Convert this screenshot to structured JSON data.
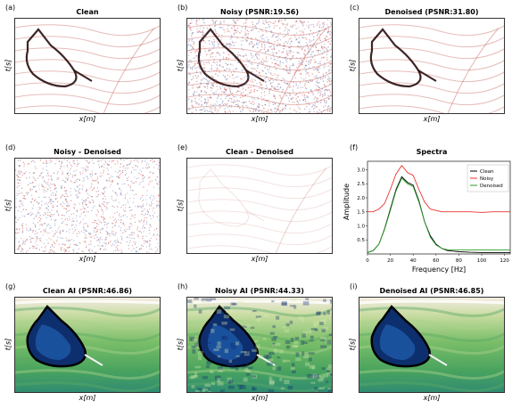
{
  "panels": [
    {
      "letter": "(a)",
      "title": "Clean",
      "xlabel": "x[m]",
      "ylabel": "t[s]",
      "style": "seismic"
    },
    {
      "letter": "(b)",
      "title": "Noisy (PSNR:19.56)",
      "xlabel": "x[m]",
      "ylabel": "t[s]",
      "style": "seismic-noisy"
    },
    {
      "letter": "(c)",
      "title": "Denoised (PSNR:31.80)",
      "xlabel": "x[m]",
      "ylabel": "t[s]",
      "style": "seismic"
    },
    {
      "letter": "(d)",
      "title": "Noisy - Denoised",
      "xlabel": "x[m]",
      "ylabel": "t[s]",
      "style": "noise"
    },
    {
      "letter": "(e)",
      "title": "Clean - Denoised",
      "xlabel": "x[m]",
      "ylabel": "t[s]",
      "style": "residual"
    },
    {
      "letter": "(f)",
      "title": "Spectra",
      "xlabel": "Frequency",
      "ylabel": "Amplitude",
      "style": "chart"
    },
    {
      "letter": "(g)",
      "title": "Clean AI (PSNR:46.86)",
      "xlabel": "x[m]",
      "ylabel": "t[s]",
      "style": "ai"
    },
    {
      "letter": "(h)",
      "title": "Noisy AI (PSNR:44.33)",
      "xlabel": "x[m]",
      "ylabel": "t[s]",
      "style": "ai-noisy"
    },
    {
      "letter": "(i)",
      "title": "Denoised AI (PSNR:46.85)",
      "xlabel": "x[m]",
      "ylabel": "t[s]",
      "style": "ai"
    }
  ],
  "chart_data": {
    "type": "line",
    "title": "Spectra",
    "xlabel": "Frequency [Hz]",
    "ylabel": "Amplitude",
    "xlim": [
      0,
      125
    ],
    "ylim": [
      0,
      3.3
    ],
    "xticks": [
      0,
      20,
      40,
      60,
      80,
      100,
      120
    ],
    "yticks": [
      0.5,
      1.0,
      1.5,
      2.0,
      2.5,
      3.0
    ],
    "grid": false,
    "legend_position": "top-right",
    "x": [
      0,
      5,
      10,
      15,
      20,
      25,
      30,
      35,
      40,
      45,
      50,
      55,
      60,
      65,
      70,
      80,
      90,
      100,
      110,
      120,
      125
    ],
    "series": [
      {
        "name": "Clean",
        "color": "#000000",
        "values": [
          0.05,
          0.12,
          0.35,
          0.9,
          1.6,
          2.3,
          2.75,
          2.55,
          2.45,
          1.9,
          1.15,
          0.65,
          0.35,
          0.2,
          0.12,
          0.08,
          0.06,
          0.05,
          0.05,
          0.05,
          0.05
        ]
      },
      {
        "name": "Noisy",
        "color": "#e8342e",
        "values": [
          1.5,
          1.5,
          1.6,
          1.8,
          2.3,
          2.85,
          3.15,
          2.9,
          2.8,
          2.3,
          1.85,
          1.6,
          1.55,
          1.5,
          1.5,
          1.5,
          1.5,
          1.48,
          1.5,
          1.5,
          1.5
        ]
      },
      {
        "name": "Denoised",
        "color": "#2a9d2a",
        "values": [
          0.05,
          0.12,
          0.35,
          0.88,
          1.55,
          2.25,
          2.7,
          2.5,
          2.4,
          1.85,
          1.15,
          0.6,
          0.32,
          0.2,
          0.15,
          0.15,
          0.14,
          0.14,
          0.14,
          0.14,
          0.14
        ]
      }
    ]
  }
}
